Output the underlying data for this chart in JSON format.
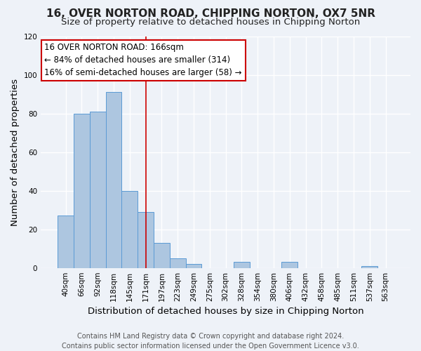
{
  "title_line1": "16, OVER NORTON ROAD, CHIPPING NORTON, OX7 5NR",
  "title_line2": "Size of property relative to detached houses in Chipping Norton",
  "xlabel": "Distribution of detached houses by size in Chipping Norton",
  "ylabel": "Number of detached properties",
  "categories": [
    "40sqm",
    "66sqm",
    "92sqm",
    "118sqm",
    "145sqm",
    "171sqm",
    "197sqm",
    "223sqm",
    "249sqm",
    "275sqm",
    "302sqm",
    "328sqm",
    "354sqm",
    "380sqm",
    "406sqm",
    "432sqm",
    "458sqm",
    "485sqm",
    "511sqm",
    "537sqm",
    "563sqm"
  ],
  "values": [
    27,
    80,
    81,
    91,
    40,
    29,
    13,
    5,
    2,
    0,
    0,
    3,
    0,
    0,
    3,
    0,
    0,
    0,
    0,
    1,
    0
  ],
  "bar_color": "#adc6e0",
  "bar_edge_color": "#5b9bd5",
  "bar_edge_width": 0.7,
  "ylim": [
    0,
    120
  ],
  "yticks": [
    0,
    20,
    40,
    60,
    80,
    100,
    120
  ],
  "red_line_index": 5,
  "annotation_line1": "16 OVER NORTON ROAD: 166sqm",
  "annotation_line2": "← 84% of detached houses are smaller (314)",
  "annotation_line3": "16% of semi-detached houses are larger (58) →",
  "footer_line1": "Contains HM Land Registry data © Crown copyright and database right 2024.",
  "footer_line2": "Contains public sector information licensed under the Open Government Licence v3.0.",
  "background_color": "#eef2f8",
  "grid_color": "#ffffff",
  "title_fontsize": 11,
  "subtitle_fontsize": 9.5,
  "axis_label_fontsize": 9.5,
  "tick_fontsize": 7.5,
  "annotation_fontsize": 8.5,
  "footer_fontsize": 7.0,
  "red_line_color": "#cc0000",
  "annotation_box_facecolor": "#ffffff",
  "annotation_box_edgecolor": "#cc0000"
}
